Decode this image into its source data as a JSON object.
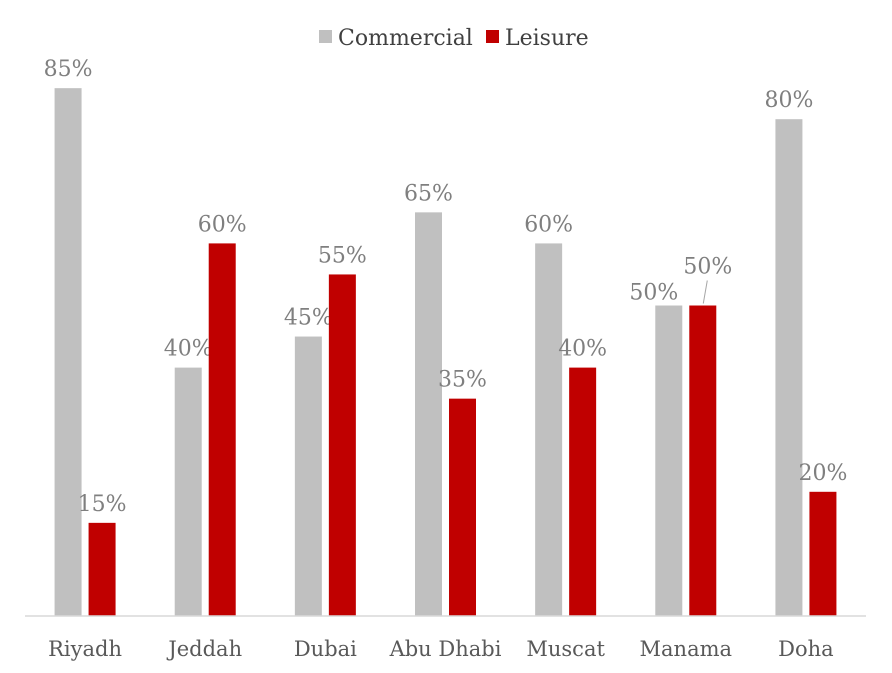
{
  "chart_data": {
    "type": "bar",
    "categories": [
      "Riyadh",
      "Jeddah",
      "Dubai",
      "Abu Dhabi",
      "Muscat",
      "Manama",
      "Doha"
    ],
    "series": [
      {
        "name": "Commercial",
        "color": "#c0c0c0",
        "values": [
          85,
          40,
          45,
          65,
          60,
          50,
          80
        ]
      },
      {
        "name": "Leisure",
        "color": "#c00000",
        "values": [
          15,
          60,
          55,
          35,
          40,
          50,
          20
        ]
      }
    ],
    "data_label_suffix": "%",
    "ylim": [
      0,
      100
    ],
    "grid": false,
    "legend": "top-center",
    "xlabel": "",
    "ylabel": ""
  }
}
